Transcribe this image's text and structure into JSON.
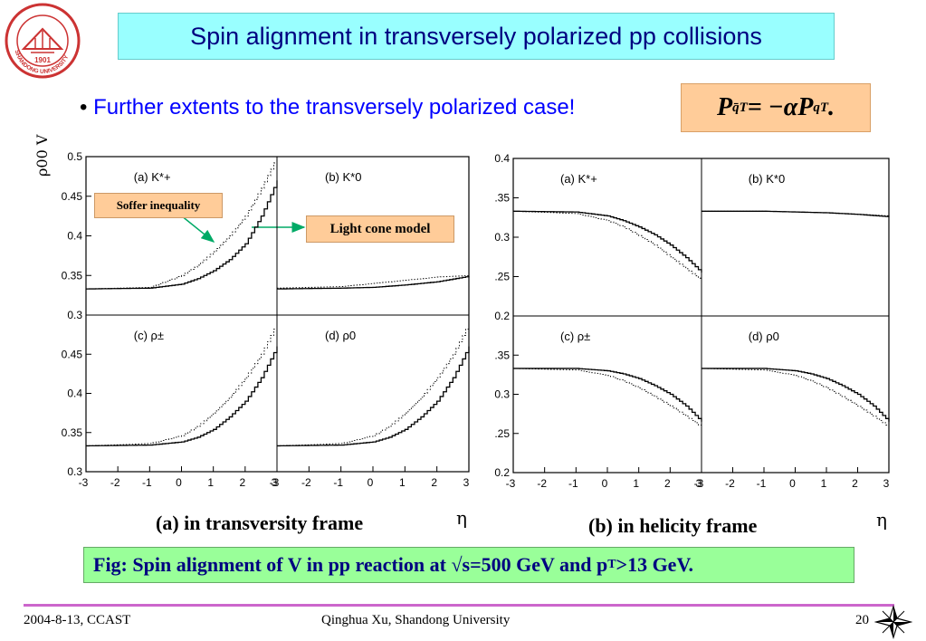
{
  "slide": {
    "title": "Spin alignment in transversely polarized pp collisions",
    "bullet": "Further extents to the transversely polarized case!",
    "formula": {
      "lhs": "P",
      "lhs_sub": "q̄T",
      "rhs": " = −αP",
      "rhs_sub": "qT",
      "end": " ."
    },
    "caption_a": "(a)  in transversity frame",
    "caption_b": "(b)  in helicity frame",
    "eta_symbol": "η",
    "fig_caption": {
      "pre": "Fig: Spin alignment of V in  pp reaction at √s=500 GeV and p",
      "sub": "T",
      "post": ">13 GeV."
    },
    "footer": {
      "date": "2004-8-13,  CCAST",
      "author": "Qinghua Xu, Shandong University",
      "page": "20"
    },
    "annotations": {
      "soffer": "Soffer inequality",
      "light_cone": "Light cone model"
    },
    "logo_text": "SHANDONG UNIVERSITY",
    "logo_year": "1901",
    "colors": {
      "title_bg": "#99ffff",
      "title_text": "#000080",
      "bullet_text": "#0000ff",
      "formula_bg": "#ffcc99",
      "caption_bg": "#99ff99",
      "annotation_bg": "#ffcc99",
      "arrow": "#00aa66",
      "footer_line": "#cc66cc",
      "logo": "#cc3333"
    }
  },
  "chart_data": [
    {
      "group": "(a) transversity frame",
      "type": "line",
      "ylabel": "ρ00 V",
      "xlabel": "η",
      "xlim": [
        -3,
        3
      ],
      "ylim": [
        0.3,
        0.5
      ],
      "x_ticks": [
        "-3",
        "-2",
        "-1",
        "0",
        "1",
        "2",
        "3"
      ],
      "y_ticks_top": [
        "0.5",
        "0.45",
        "0.4",
        "0.35",
        "0.3"
      ],
      "y_ticks_bottom": [
        "0.45",
        "0.4",
        "0.35",
        "0.3"
      ],
      "panels": [
        {
          "label": "(a) K*+",
          "series": [
            {
              "style": "solid",
              "x": [
                -3,
                -1,
                0,
                0.5,
                1,
                1.5,
                2,
                2.5,
                3
              ],
              "y": [
                0.333,
                0.334,
                0.339,
                0.346,
                0.356,
                0.37,
                0.39,
                0.425,
                0.47
              ]
            },
            {
              "style": "dotted",
              "x": [
                -3,
                -1,
                0,
                0.5,
                1,
                1.5,
                2,
                2.5,
                3
              ],
              "y": [
                0.333,
                0.335,
                0.35,
                0.363,
                0.38,
                0.4,
                0.425,
                0.46,
                0.5
              ]
            }
          ]
        },
        {
          "label": "(b) K*0",
          "series": [
            {
              "style": "solid",
              "x": [
                -3,
                -1,
                0,
                1,
                2,
                3
              ],
              "y": [
                0.333,
                0.334,
                0.335,
                0.338,
                0.342,
                0.349
              ]
            },
            {
              "style": "dotted",
              "x": [
                -3,
                -1,
                0,
                1,
                2,
                3
              ],
              "y": [
                0.334,
                0.336,
                0.34,
                0.344,
                0.348,
                0.35
              ]
            }
          ]
        },
        {
          "label": "(c) ρ±",
          "series": [
            {
              "style": "solid",
              "x": [
                -3,
                -1,
                0,
                0.5,
                1,
                1.5,
                2,
                2.5,
                3
              ],
              "y": [
                0.333,
                0.334,
                0.338,
                0.344,
                0.354,
                0.37,
                0.39,
                0.42,
                0.46
              ]
            },
            {
              "style": "dotted",
              "x": [
                -3,
                -1,
                0,
                0.5,
                1,
                1.5,
                2,
                2.5,
                3
              ],
              "y": [
                0.333,
                0.336,
                0.346,
                0.358,
                0.375,
                0.395,
                0.42,
                0.45,
                0.49
              ]
            }
          ]
        },
        {
          "label": "(d) ρ0",
          "series": [
            {
              "style": "solid",
              "x": [
                -3,
                -1,
                0,
                0.5,
                1,
                1.5,
                2,
                2.5,
                3
              ],
              "y": [
                0.333,
                0.334,
                0.338,
                0.344,
                0.354,
                0.37,
                0.39,
                0.42,
                0.46
              ]
            },
            {
              "style": "dotted",
              "x": [
                -3,
                -1,
                0,
                0.5,
                1,
                1.5,
                2,
                2.5,
                3
              ],
              "y": [
                0.333,
                0.336,
                0.346,
                0.358,
                0.375,
                0.395,
                0.42,
                0.45,
                0.49
              ]
            }
          ]
        }
      ]
    },
    {
      "group": "(b) helicity frame",
      "type": "line",
      "xlabel": "η",
      "xlim": [
        -3,
        3
      ],
      "ylim": [
        0.2,
        0.4
      ],
      "x_ticks": [
        "-3",
        "-2",
        "-1",
        "0",
        "1",
        "2",
        "3"
      ],
      "y_ticks_top": [
        "0.4",
        ".35",
        "0.3",
        ".25",
        "0.2"
      ],
      "y_ticks_bottom": [
        ".35",
        "0.3",
        ".25",
        "0.2"
      ],
      "panels": [
        {
          "label": "(a) K*+",
          "series": [
            {
              "style": "solid",
              "x": [
                -3,
                -1,
                0,
                0.5,
                1,
                1.5,
                2,
                2.5,
                3
              ],
              "y": [
                0.333,
                0.332,
                0.327,
                0.321,
                0.313,
                0.303,
                0.29,
                0.274,
                0.255
              ]
            },
            {
              "style": "dotted",
              "x": [
                -3,
                -1,
                0,
                0.5,
                1,
                1.5,
                2,
                2.5,
                3
              ],
              "y": [
                0.333,
                0.33,
                0.321,
                0.313,
                0.302,
                0.29,
                0.275,
                0.26,
                0.245
              ]
            }
          ]
        },
        {
          "label": "(b) K*0",
          "series": [
            {
              "style": "solid",
              "x": [
                -3,
                -1,
                0,
                1,
                2,
                3
              ],
              "y": [
                0.333,
                0.333,
                0.332,
                0.331,
                0.329,
                0.326
              ]
            },
            {
              "style": "dotted",
              "x": [
                -3,
                -1,
                0,
                1,
                2,
                3
              ],
              "y": [
                0.333,
                0.333,
                0.332,
                0.331,
                0.329,
                0.327
              ]
            }
          ]
        },
        {
          "label": "(c) ρ±",
          "series": [
            {
              "style": "solid",
              "x": [
                -3,
                -1,
                0,
                0.5,
                1,
                1.5,
                2,
                2.5,
                3
              ],
              "y": [
                0.333,
                0.333,
                0.33,
                0.326,
                0.32,
                0.311,
                0.3,
                0.285,
                0.265
              ]
            },
            {
              "style": "dotted",
              "x": [
                -3,
                -1,
                0,
                0.5,
                1,
                1.5,
                2,
                2.5,
                3
              ],
              "y": [
                0.333,
                0.331,
                0.324,
                0.317,
                0.308,
                0.297,
                0.285,
                0.272,
                0.258
              ]
            }
          ]
        },
        {
          "label": "(d) ρ0",
          "series": [
            {
              "style": "solid",
              "x": [
                -3,
                -1,
                0,
                0.5,
                1,
                1.5,
                2,
                2.5,
                3
              ],
              "y": [
                0.333,
                0.333,
                0.33,
                0.326,
                0.32,
                0.311,
                0.3,
                0.285,
                0.265
              ]
            },
            {
              "style": "dotted",
              "x": [
                -3,
                -1,
                0,
                0.5,
                1,
                1.5,
                2,
                2.5,
                3
              ],
              "y": [
                0.333,
                0.331,
                0.324,
                0.317,
                0.308,
                0.297,
                0.285,
                0.272,
                0.258
              ]
            }
          ]
        }
      ]
    }
  ]
}
